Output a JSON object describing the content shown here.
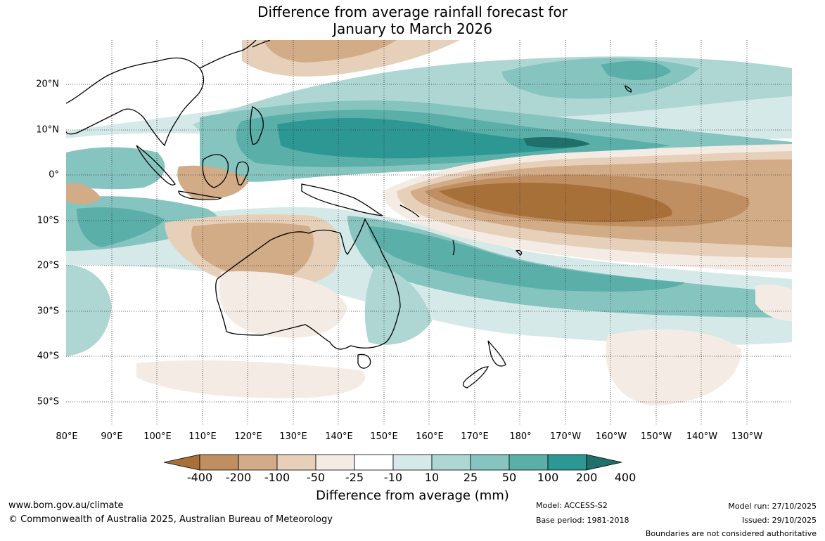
{
  "title": {
    "line1": "Difference from average rainfall forecast for",
    "line2": "January to March 2026"
  },
  "map": {
    "longitude_ticks": [
      "80°E",
      "90°E",
      "100°E",
      "110°E",
      "120°E",
      "130°E",
      "140°E",
      "150°E",
      "160°E",
      "170°E",
      "180°",
      "170°W",
      "160°W",
      "150°W",
      "140°W",
      "130°W"
    ],
    "latitude_ticks": [
      "20°N",
      "10°N",
      "0°",
      "10°S",
      "20°S",
      "30°S",
      "40°S",
      "50°S"
    ],
    "colorbar": {
      "labels": [
        "-400",
        "-200",
        "-100",
        "-50",
        "-25",
        "-10",
        "10",
        "25",
        "50",
        "100",
        "200",
        "400"
      ],
      "colors": [
        "#a87039",
        "#bf8f62",
        "#d2ab87",
        "#e6d0ba",
        "#f4ece4",
        "#ffffff",
        "#d5eae8",
        "#aed7d3",
        "#86c4bf",
        "#5bafa9",
        "#2d9893",
        "#1f6f6b"
      ],
      "title": "Difference from average (mm)"
    }
  },
  "footer": {
    "url": "www.bom.gov.au/climate",
    "copyright": "© Commonwealth of Australia 2025, Australian Bureau of Meteorology",
    "model": "Model: ACCESS-S2",
    "base_period": "Base period: 1981-2018",
    "model_run": "Model run: 27/10/2025",
    "issued": "Issued: 29/10/2025",
    "disclaimer": "Boundaries are not considered authoritative"
  }
}
